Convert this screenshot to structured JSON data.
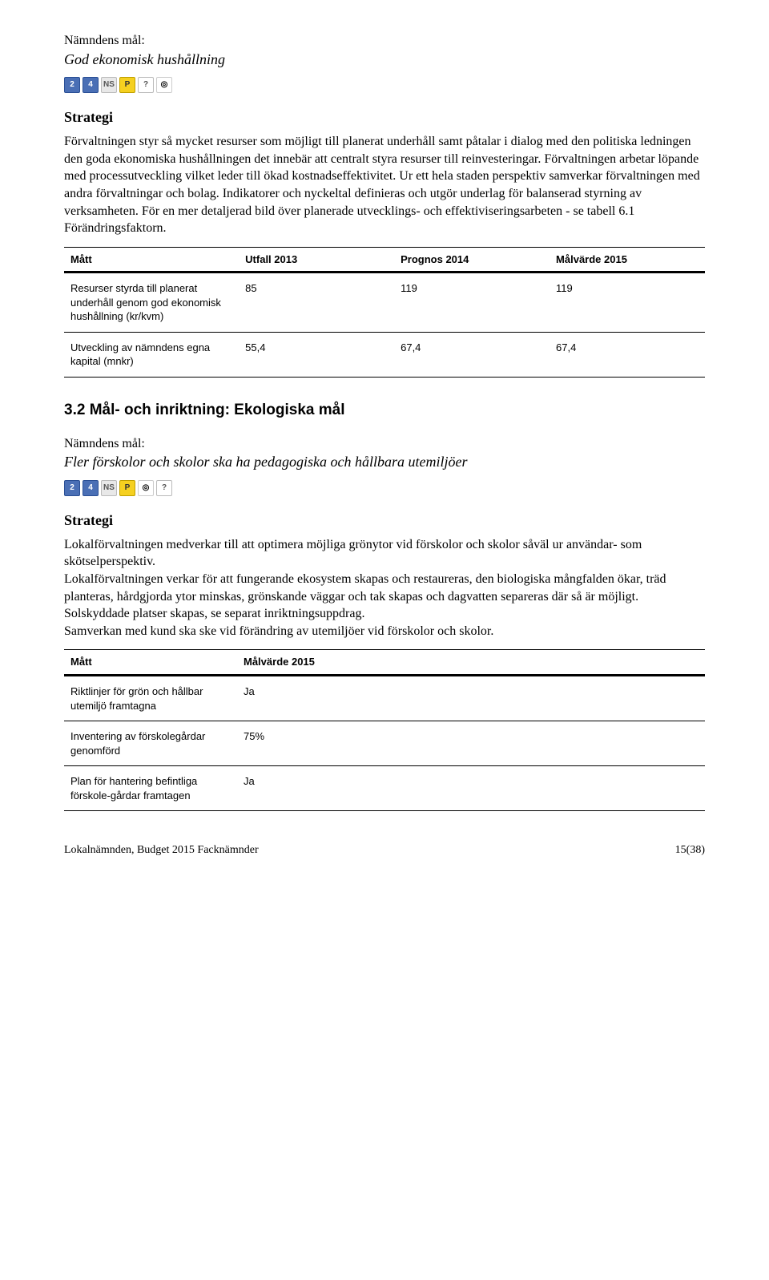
{
  "section1": {
    "label": "Nämndens mål:",
    "goal": "God ekonomisk hushållning",
    "strategi_heading": "Strategi",
    "strategi_body": "Förvaltningen styr så mycket resurser som möjligt till planerat underhåll samt påtalar i dialog med den politiska ledningen den goda ekonomiska hushållningen det innebär att centralt styra resurser till reinvesteringar. Förvaltningen arbetar löpande med processutveckling vilket leder till ökad kostnadseffektivitet. Ur ett hela staden perspektiv samverkar förvaltningen med andra förvaltningar och bolag. Indikatorer och nyckeltal definieras och utgör underlag för balanserad styrning av verksamheten. För en mer detaljerad bild över planerade utvecklings- och effektiviseringsarbeten - se tabell 6.1 Förändringsfaktorn.",
    "table": {
      "headers": [
        "Mått",
        "Utfall 2013",
        "Prognos 2014",
        "Målvärde 2015"
      ],
      "rows": [
        {
          "matt": "Resurser styrda till planerat underhåll genom god ekonomisk hushållning (kr/kvm)",
          "v1": "85",
          "v2": "119",
          "v3": "119"
        },
        {
          "matt": "Utveckling av nämndens egna kapital (mnkr)",
          "v1": "55,4",
          "v2": "67,4",
          "v3": "67,4"
        }
      ]
    }
  },
  "icons": {
    "set1": [
      "2",
      "4",
      "NS",
      "P",
      "?",
      "◎"
    ],
    "set2": [
      "2",
      "4",
      "NS",
      "P",
      "◎",
      "?"
    ]
  },
  "section2": {
    "heading": "3.2  Mål- och inriktning: Ekologiska mål",
    "label": "Nämndens mål:",
    "goal": "Fler förskolor och skolor ska ha pedagogiska och hållbara utemiljöer",
    "strategi_heading": "Strategi",
    "strategi_body": "Lokalförvaltningen medverkar till att optimera möjliga grönytor vid förskolor och skolor såväl ur användar- som skötselperspektiv.\nLokalförvaltningen verkar för att fungerande ekosystem skapas och restaureras, den biologiska mångfalden ökar, träd planteras, hårdgjorda ytor minskas, grönskande väggar och tak skapas och dagvatten separeras där så är möjligt. Solskyddade platser skapas, se separat inriktningsuppdrag.\nSamverkan med kund ska ske vid förändring av utemiljöer vid förskolor och skolor.",
    "table": {
      "headers": [
        "Mått",
        "Målvärde 2015"
      ],
      "rows": [
        {
          "matt": "Riktlinjer för grön och hållbar utemiljö framtagna",
          "v1": "Ja"
        },
        {
          "matt": "Inventering av förskolegårdar genomförd",
          "v1": "75%"
        },
        {
          "matt": "Plan för hantering befintliga förskole-gårdar framtagen",
          "v1": "Ja"
        }
      ]
    }
  },
  "footer": {
    "left": "Lokalnämnden, Budget 2015 Facknämnder",
    "right": "15(38)"
  }
}
